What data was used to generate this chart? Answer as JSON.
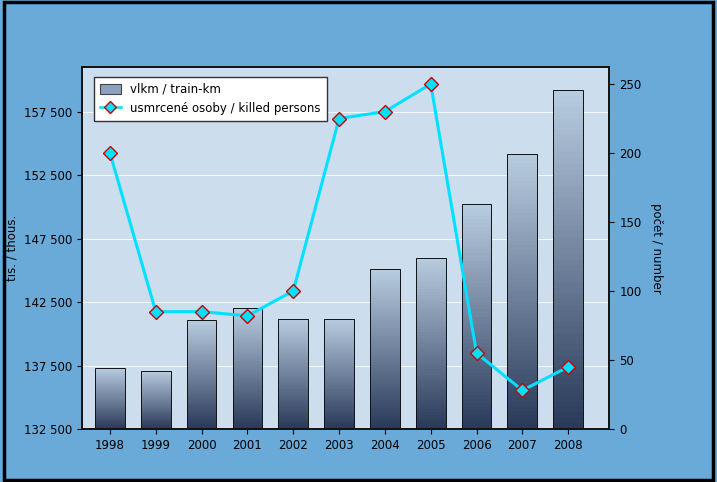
{
  "years": [
    1998,
    1999,
    2000,
    2001,
    2002,
    2003,
    2004,
    2005,
    2006,
    2007,
    2008
  ],
  "train_km": [
    137300,
    137100,
    141100,
    142000,
    141200,
    141200,
    145100,
    146000,
    150200,
    154200,
    159200
  ],
  "killed_persons": [
    200,
    85,
    85,
    82,
    100,
    225,
    230,
    250,
    55,
    28,
    45
  ],
  "bar_color_top": "#b8cce0",
  "bar_color_bottom": "#2a3a5a",
  "line_color": "#00e0ff",
  "marker_face": "#00e0ff",
  "marker_edge": "#cc0000",
  "ylabel_left": "tis. / thous.",
  "ylabel_right": "počet / number",
  "ylim_left": [
    132500,
    161000
  ],
  "ylim_right": [
    0,
    262
  ],
  "yticks_left": [
    132500,
    137500,
    142500,
    147500,
    152500,
    157500
  ],
  "ytick_labels_left": [
    "132 500",
    "137 500",
    "142 500",
    "147 500",
    "152 500",
    "157 500"
  ],
  "yticks_right": [
    0,
    50,
    100,
    150,
    200,
    250
  ],
  "legend_label_bar": "vlkm / train-km",
  "legend_label_line": "usmrcené osoby / killed persons",
  "background_outer": "#6aaad8",
  "background_inner": "#ccdded",
  "xlim": [
    1997.4,
    2008.9
  ],
  "bar_width": 0.65
}
